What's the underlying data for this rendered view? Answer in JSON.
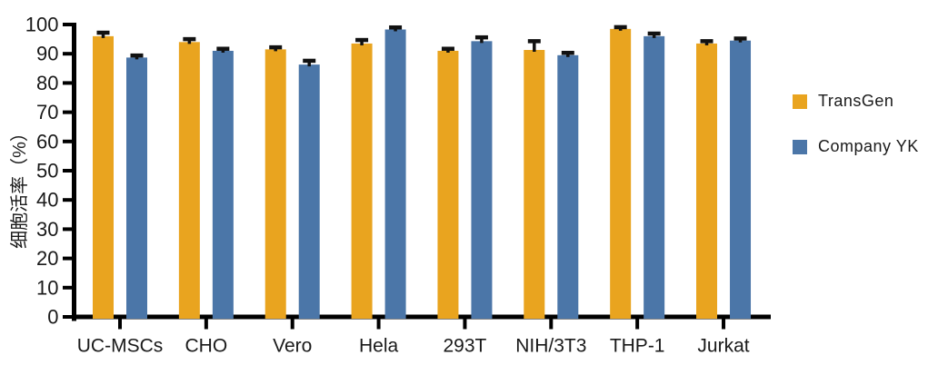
{
  "figure": {
    "background": "#ffffff"
  },
  "chart_data": {
    "type": "bar",
    "title": "",
    "xlabel": "",
    "ylabel": "细胞活率（%）",
    "ylim": [
      0,
      100
    ],
    "ytick_step": 10,
    "grid": false,
    "legend_position": "right",
    "categories": [
      "UC-MSCs",
      "CHO",
      "Vero",
      "Hela",
      "293T",
      "NIH/3T3",
      "THP-1",
      "Jurkat"
    ],
    "series": [
      {
        "name": "TransGen",
        "color": "#E9A41F",
        "values": [
          96,
          94,
          91.5,
          93.5,
          91,
          91.3,
          98.5,
          93.5
        ],
        "errors": [
          1.2,
          1.0,
          0.7,
          1.2,
          0.7,
          3.0,
          0.6,
          0.8
        ]
      },
      {
        "name": "Company YK",
        "color": "#4B76A8",
        "values": [
          88.7,
          91,
          86.3,
          98.3,
          94.3,
          89.5,
          96,
          94.5
        ],
        "errors": [
          0.7,
          0.7,
          1.3,
          0.7,
          1.3,
          0.8,
          0.9,
          0.7
        ]
      }
    ],
    "error_bar_color": "#111111",
    "axis_color": "#000000"
  }
}
